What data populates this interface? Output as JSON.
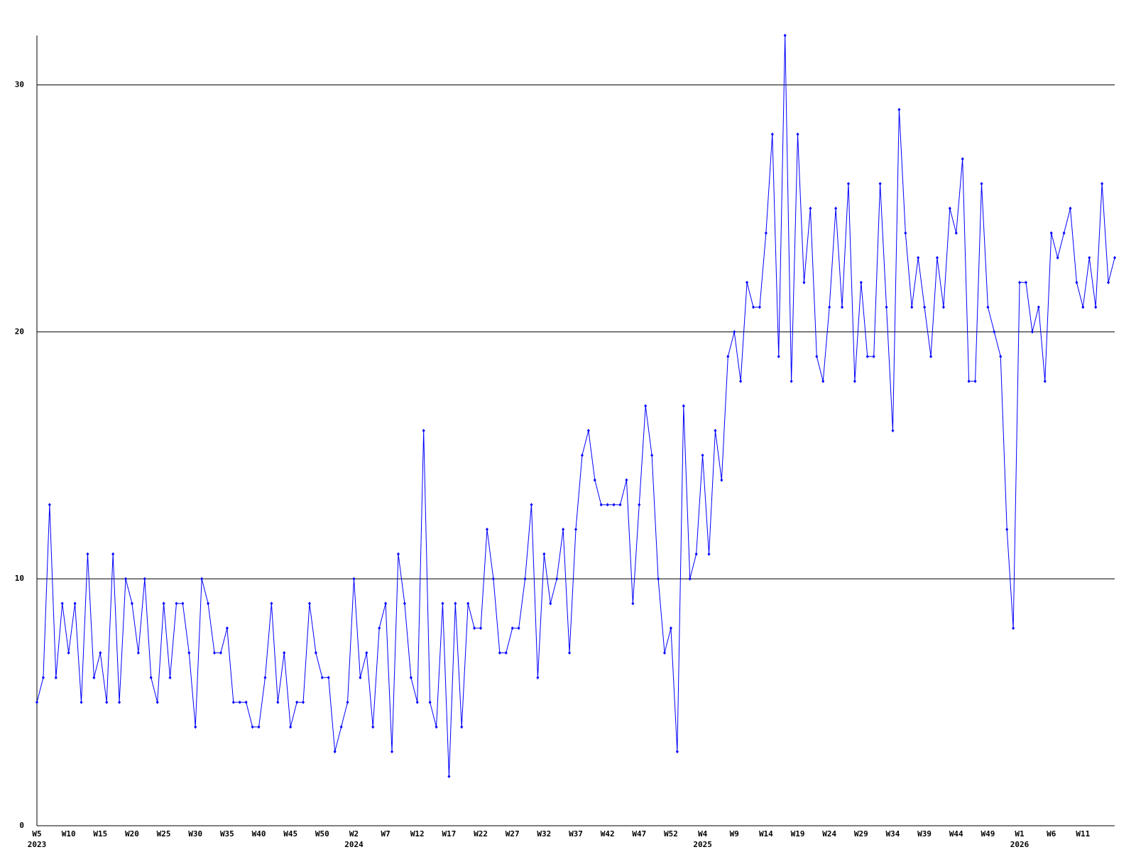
{
  "chart_data": {
    "type": "line",
    "categories": [
      "W5",
      null,
      null,
      null,
      null,
      "W10",
      null,
      null,
      null,
      null,
      "W15",
      null,
      null,
      null,
      null,
      "W20",
      null,
      null,
      null,
      null,
      "W25",
      null,
      null,
      null,
      null,
      "W30",
      null,
      null,
      null,
      null,
      "W35",
      null,
      null,
      null,
      null,
      "W40",
      null,
      null,
      null,
      null,
      "W45",
      null,
      null,
      null,
      null,
      "W50",
      null,
      null,
      null,
      null,
      "W2",
      null,
      null,
      null,
      null,
      "W7",
      null,
      null,
      null,
      null,
      "W12",
      null,
      null,
      null,
      null,
      "W17",
      null,
      null,
      null,
      null,
      "W22",
      null,
      null,
      null,
      null,
      "W27",
      null,
      null,
      null,
      null,
      "W32",
      null,
      null,
      null,
      null,
      "W37",
      null,
      null,
      null,
      null,
      "W42",
      null,
      null,
      null,
      null,
      "W47",
      null,
      null,
      null,
      null,
      "W52",
      null,
      null,
      null,
      null,
      "W4",
      null,
      null,
      null,
      null,
      "W9",
      null,
      null,
      null,
      null,
      "W14",
      null,
      null,
      null,
      null,
      "W19",
      null,
      null,
      null,
      null,
      "W24",
      null,
      null,
      null,
      null,
      "W29",
      null,
      null,
      null,
      null,
      "W34",
      null,
      null,
      null,
      null,
      "W39",
      null,
      null,
      null,
      null,
      "W44",
      null,
      null,
      null,
      null,
      "W49",
      null,
      null,
      null,
      null,
      "W1",
      null,
      null,
      null,
      null,
      "W6",
      null,
      null,
      null,
      null,
      "W11",
      null,
      null,
      null,
      null,
      null
    ],
    "category_years": [
      "2023",
      null,
      null,
      null,
      null,
      null,
      null,
      null,
      null,
      null,
      null,
      null,
      null,
      null,
      null,
      null,
      null,
      null,
      null,
      null,
      null,
      null,
      null,
      null,
      null,
      null,
      null,
      null,
      null,
      null,
      null,
      null,
      null,
      null,
      null,
      null,
      null,
      null,
      null,
      null,
      null,
      null,
      null,
      null,
      null,
      null,
      null,
      null,
      null,
      null,
      "2024",
      null,
      null,
      null,
      null,
      null,
      null,
      null,
      null,
      null,
      null,
      null,
      null,
      null,
      null,
      null,
      null,
      null,
      null,
      null,
      null,
      null,
      null,
      null,
      null,
      null,
      null,
      null,
      null,
      null,
      null,
      null,
      null,
      null,
      null,
      null,
      null,
      null,
      null,
      null,
      null,
      null,
      null,
      null,
      null,
      null,
      null,
      null,
      null,
      null,
      null,
      null,
      null,
      null,
      null,
      "2025",
      null,
      null,
      null,
      null,
      null,
      null,
      null,
      null,
      null,
      null,
      null,
      null,
      null,
      null,
      null,
      null,
      null,
      null,
      null,
      null,
      null,
      null,
      null,
      null,
      null,
      null,
      null,
      null,
      null,
      null,
      null,
      null,
      null,
      null,
      null,
      null,
      null,
      null,
      null,
      null,
      null,
      null,
      null,
      null,
      null,
      null,
      null,
      null,
      null,
      "2026",
      null,
      null,
      null,
      null,
      null,
      null,
      null,
      null,
      null,
      null,
      null,
      null,
      null,
      null,
      null
    ],
    "series": [
      {
        "color": "#0000ff",
        "values": [
          5,
          6,
          13,
          6,
          9,
          7,
          9,
          5,
          11,
          6,
          7,
          5,
          11,
          5,
          10,
          9,
          7,
          10,
          6,
          5,
          9,
          6,
          9,
          9,
          7,
          4,
          10,
          9,
          7,
          7,
          8,
          5,
          5,
          5,
          4,
          4,
          6,
          9,
          5,
          7,
          4,
          5,
          5,
          9,
          7,
          6,
          6,
          3,
          4,
          5,
          10,
          6,
          7,
          4,
          8,
          9,
          3,
          11,
          9,
          6,
          5,
          16,
          5,
          4,
          9,
          2,
          9,
          4,
          9,
          8,
          8,
          12,
          10,
          7,
          7,
          8,
          8,
          10,
          13,
          6,
          11,
          9,
          10,
          12,
          7,
          12,
          15,
          16,
          14,
          13,
          13,
          13,
          13,
          14,
          9,
          13,
          17,
          15,
          10,
          7,
          8,
          3,
          17,
          10,
          11,
          15,
          11,
          16,
          14,
          19,
          20,
          18,
          22,
          21,
          21,
          24,
          28,
          19,
          32,
          18,
          28,
          22,
          25,
          19,
          18,
          21,
          25,
          21,
          26,
          18,
          22,
          19,
          19,
          26,
          21,
          16,
          29,
          24,
          21,
          23,
          21,
          19,
          23,
          21,
          25,
          24,
          27,
          18,
          18,
          26,
          21,
          20,
          19,
          12,
          8,
          22,
          22,
          20,
          21,
          18,
          24,
          23,
          24,
          25,
          22,
          21,
          23,
          21,
          26,
          22,
          23
        ]
      }
    ],
    "ylim": [
      0,
      32
    ],
    "yticks": [
      0,
      10,
      20,
      30
    ],
    "grid": true
  }
}
